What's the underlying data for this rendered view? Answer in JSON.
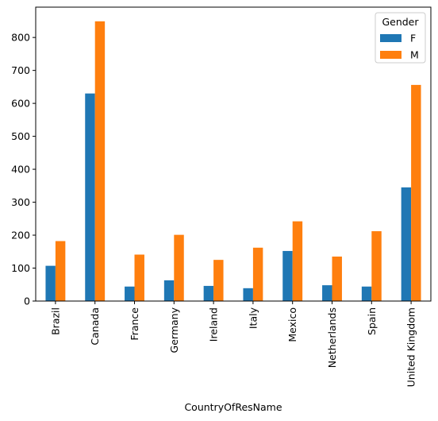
{
  "chart_data": {
    "type": "bar",
    "title": "",
    "xlabel": "CountryOfResName",
    "ylabel": "",
    "categories": [
      "Brazil",
      "Canada",
      "France",
      "Germany",
      "Ireland",
      "Italy",
      "Mexico",
      "Netherlands",
      "Spain",
      "United Kingdom"
    ],
    "series": [
      {
        "name": "F",
        "color": "#1f77b4",
        "values": [
          107,
          630,
          44,
          63,
          46,
          39,
          152,
          48,
          44,
          345
        ]
      },
      {
        "name": "M",
        "color": "#ff7f0e",
        "values": [
          182,
          849,
          141,
          201,
          125,
          162,
          242,
          135,
          212,
          656
        ]
      }
    ],
    "ylim": [
      0,
      892
    ],
    "yticks": [
      0,
      100,
      200,
      300,
      400,
      500,
      600,
      700,
      800
    ],
    "legend": {
      "title": "Gender",
      "placement": "top-right"
    },
    "grid": false
  }
}
